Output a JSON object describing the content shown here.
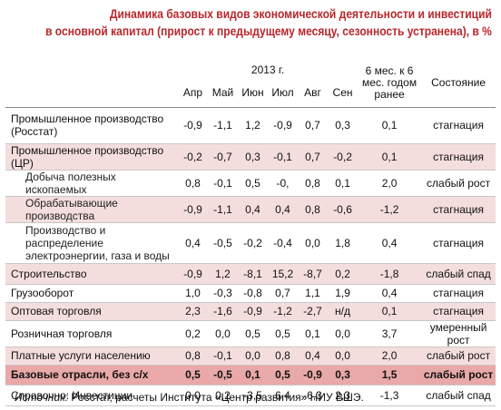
{
  "title": [
    "Динамика базовых видов экономической деятельности и инвестиций",
    "в основной капитал (прирост к предыдущему месяцу, сезонность устранена), в %"
  ],
  "table": {
    "year": "2013 г.",
    "columns": [
      "Апр",
      "Май",
      "Июн",
      "Июл",
      "Авг",
      "Сен",
      "6 мес. к 6 мес. годом ранее",
      "Состояние"
    ],
    "rows": [
      [
        "Промышленное производство (Росстат)",
        "-0,9",
        "-1,1",
        "1,2",
        "-0,9",
        "0,7",
        "0,3",
        "0,1",
        "стагнация"
      ],
      [
        "Промышленное производство (ЦР)",
        "-0,2",
        "-0,7",
        "0,3",
        "-0,1",
        "0,7",
        "-0,2",
        "0,1",
        "стагнация"
      ],
      [
        "Добыча полезных ископаемых",
        "0,8",
        "-0,1",
        "0,5",
        "-0,",
        "0,8",
        "0,1",
        "2,0",
        "слабый рост"
      ],
      [
        "Обрабатывающие производства",
        "-0,9",
        "-1,1",
        "0,4",
        "0,4",
        "0,8",
        "-0,6",
        "-1,2",
        "стагнация"
      ],
      [
        "Производство и распределение электроэнергии, газа и воды",
        "0,4",
        "-0,5",
        "-0,2",
        "-0,4",
        "0,0",
        "1,8",
        "0,4",
        "стагнация"
      ],
      [
        "Строительство",
        "-0,9",
        "1,2",
        "-8,1",
        "15,2",
        "-8,7",
        "0,2",
        "-1,8",
        "слабый спад"
      ],
      [
        "Грузооборот",
        "1,0",
        "-0,3",
        "-0,8",
        "0,7",
        "1,1",
        "1,9",
        "0,4",
        "стагнация"
      ],
      [
        "Оптовая торговля",
        "2,3",
        "-1,6",
        "-0,9",
        "-1,2",
        "-2,7",
        "н/д",
        "0,1",
        "стагнация"
      ],
      [
        "Розничная торговля",
        "0,2",
        "0,0",
        "0,5",
        "0,5",
        "0,1",
        "0,0",
        "3,7",
        "умеренный рост"
      ],
      [
        "Платные услуги населению",
        "0,8",
        "-0,1",
        "0,0",
        "0,8",
        "0,4",
        "0,0",
        "2,0",
        "слабый рост"
      ],
      [
        "Базовые отрасли, без с/х",
        "0,5",
        "-0,5",
        "0,1",
        "0,5",
        "-0,9",
        "0,3",
        "1,5",
        "слабый рост"
      ],
      [
        "Справочно: Инвестиции",
        "0,0",
        "0,2",
        "-3,5",
        "6,4",
        "-6,3",
        "2,3",
        "-1,3",
        "слабый спад"
      ]
    ]
  },
  "source": {
    "label": "Источник:",
    "text": "Росстат, расчеты Института «Центр развития» НИУ ВШЭ."
  }
}
